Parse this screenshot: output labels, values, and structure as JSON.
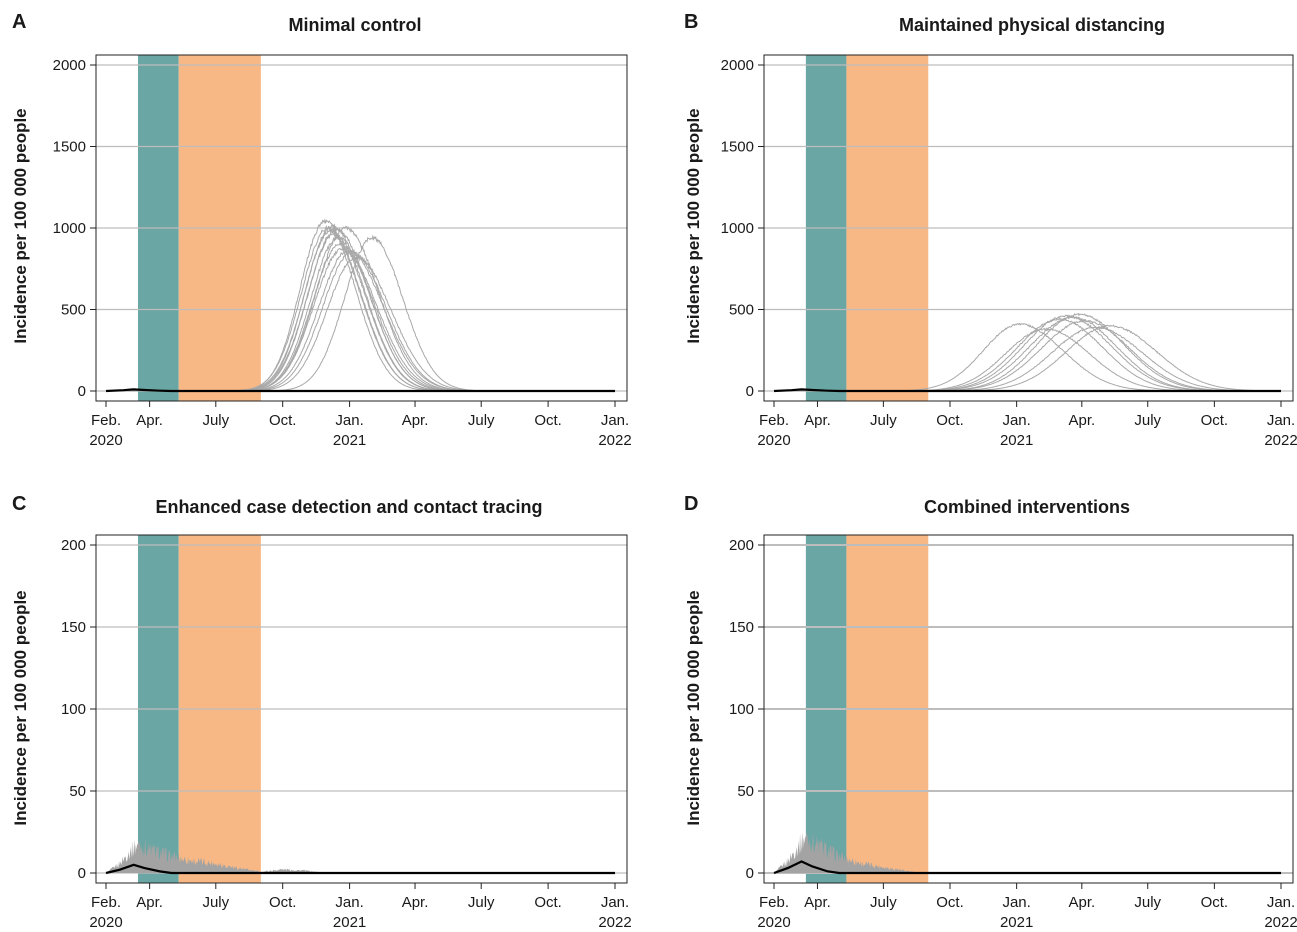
{
  "figure": {
    "x_axis_start": "2020-02-01"
  },
  "chart_data": [
    {
      "panel": "A",
      "title": "Minimal control",
      "type": "line",
      "ylabel": "Incidence per 100 000 people",
      "xlim": [
        "2020-02-01",
        "2022-01-01"
      ],
      "ylim": [
        0,
        2000
      ],
      "yticks": [
        0,
        500,
        1000,
        1500,
        2000
      ],
      "grid": true,
      "xticks": [
        {
          "date": "2020-02-01",
          "label": "Feb.",
          "year": "2020"
        },
        {
          "date": "2020-04-01",
          "label": "Apr.",
          "year": ""
        },
        {
          "date": "2020-07-01",
          "label": "July",
          "year": ""
        },
        {
          "date": "2020-10-01",
          "label": "Oct.",
          "year": ""
        },
        {
          "date": "2021-01-01",
          "label": "Jan.",
          "year": "2021"
        },
        {
          "date": "2021-04-01",
          "label": "Apr.",
          "year": ""
        },
        {
          "date": "2021-07-01",
          "label": "July",
          "year": ""
        },
        {
          "date": "2021-10-01",
          "label": "Oct.",
          "year": ""
        },
        {
          "date": "2022-01-01",
          "label": "Jan.",
          "year": "2022"
        }
      ],
      "shaded_periods": [
        {
          "start": "2020-03-16",
          "end": "2020-05-11",
          "color": "#6aa6a4"
        },
        {
          "start": "2020-05-11",
          "end": "2020-09-01",
          "color": "#f8b885"
        }
      ],
      "epidemic_curves": [
        {
          "peak_date": "2020-11-28",
          "peak": 1040,
          "rise_width": 34,
          "fall_width": 42
        },
        {
          "peak_date": "2020-12-02",
          "peak": 1000,
          "rise_width": 36,
          "fall_width": 44
        },
        {
          "peak_date": "2020-12-05",
          "peak": 980,
          "rise_width": 35,
          "fall_width": 43
        },
        {
          "peak_date": "2020-12-08",
          "peak": 1010,
          "rise_width": 37,
          "fall_width": 45
        },
        {
          "peak_date": "2020-12-10",
          "peak": 960,
          "rise_width": 36,
          "fall_width": 44
        },
        {
          "peak_date": "2020-12-13",
          "peak": 990,
          "rise_width": 38,
          "fall_width": 46
        },
        {
          "peak_date": "2020-12-16",
          "peak": 940,
          "rise_width": 37,
          "fall_width": 45
        },
        {
          "peak_date": "2020-12-19",
          "peak": 900,
          "rise_width": 38,
          "fall_width": 46
        },
        {
          "peak_date": "2020-12-22",
          "peak": 870,
          "rise_width": 39,
          "fall_width": 47
        },
        {
          "peak_date": "2020-12-26",
          "peak": 1000,
          "rise_width": 40,
          "fall_width": 46
        },
        {
          "peak_date": "2020-12-30",
          "peak": 860,
          "rise_width": 40,
          "fall_width": 48
        },
        {
          "peak_date": "2021-01-04",
          "peak": 850,
          "rise_width": 40,
          "fall_width": 47
        },
        {
          "peak_date": "2021-01-10",
          "peak": 820,
          "rise_width": 40,
          "fall_width": 48
        },
        {
          "peak_date": "2021-02-01",
          "peak": 940,
          "rise_width": 38,
          "fall_width": 42
        }
      ],
      "noise_band": null,
      "median_line": [
        {
          "date": "2020-02-01",
          "value": 0
        },
        {
          "date": "2020-02-25",
          "value": 5
        },
        {
          "date": "2020-03-10",
          "value": 10
        },
        {
          "date": "2020-03-25",
          "value": 6
        },
        {
          "date": "2020-04-15",
          "value": 2
        },
        {
          "date": "2020-05-01",
          "value": 0
        },
        {
          "date": "2022-01-01",
          "value": 0
        }
      ]
    },
    {
      "panel": "B",
      "title": "Maintained physical distancing",
      "type": "line",
      "ylabel": "Incidence per 100 000 people",
      "xlim": [
        "2020-02-01",
        "2022-01-01"
      ],
      "ylim": [
        0,
        2000
      ],
      "yticks": [
        0,
        500,
        1000,
        1500,
        2000
      ],
      "grid": true,
      "xticks": [
        {
          "date": "2020-02-01",
          "label": "Feb.",
          "year": "2020"
        },
        {
          "date": "2020-04-01",
          "label": "Apr.",
          "year": ""
        },
        {
          "date": "2020-07-01",
          "label": "July",
          "year": ""
        },
        {
          "date": "2020-10-01",
          "label": "Oct.",
          "year": ""
        },
        {
          "date": "2021-01-01",
          "label": "Jan.",
          "year": "2021"
        },
        {
          "date": "2021-04-01",
          "label": "Apr.",
          "year": ""
        },
        {
          "date": "2021-07-01",
          "label": "July",
          "year": ""
        },
        {
          "date": "2021-10-01",
          "label": "Oct.",
          "year": ""
        },
        {
          "date": "2022-01-01",
          "label": "Jan.",
          "year": "2022"
        }
      ],
      "shaded_periods": [
        {
          "start": "2020-03-16",
          "end": "2020-05-11",
          "color": "#6aa6a4"
        },
        {
          "start": "2020-05-11",
          "end": "2020-09-01",
          "color": "#f8b885"
        }
      ],
      "epidemic_curves": [
        {
          "peak_date": "2021-01-05",
          "peak": 410,
          "rise_width": 50,
          "fall_width": 60
        },
        {
          "peak_date": "2021-02-10",
          "peak": 380,
          "rise_width": 55,
          "fall_width": 60
        },
        {
          "peak_date": "2021-03-01",
          "peak": 440,
          "rise_width": 58,
          "fall_width": 60
        },
        {
          "peak_date": "2021-03-10",
          "peak": 460,
          "rise_width": 58,
          "fall_width": 62
        },
        {
          "peak_date": "2021-03-20",
          "peak": 450,
          "rise_width": 60,
          "fall_width": 60
        },
        {
          "peak_date": "2021-03-28",
          "peak": 470,
          "rise_width": 58,
          "fall_width": 62
        },
        {
          "peak_date": "2021-04-05",
          "peak": 430,
          "rise_width": 60,
          "fall_width": 62
        },
        {
          "peak_date": "2021-04-20",
          "peak": 390,
          "rise_width": 60,
          "fall_width": 64
        },
        {
          "peak_date": "2021-05-10",
          "peak": 400,
          "rise_width": 60,
          "fall_width": 64
        }
      ],
      "noise_band": null,
      "median_line": [
        {
          "date": "2020-02-01",
          "value": 0
        },
        {
          "date": "2020-02-25",
          "value": 5
        },
        {
          "date": "2020-03-10",
          "value": 10
        },
        {
          "date": "2020-03-25",
          "value": 6
        },
        {
          "date": "2020-04-15",
          "value": 2
        },
        {
          "date": "2020-05-01",
          "value": 0
        },
        {
          "date": "2022-01-01",
          "value": 0
        }
      ]
    },
    {
      "panel": "C",
      "title": "Enhanced case detection and contact tracing",
      "type": "line",
      "ylabel": "Incidence per 100 000 people",
      "xlim": [
        "2020-02-01",
        "2022-01-01"
      ],
      "ylim": [
        0,
        200
      ],
      "yticks": [
        0,
        50,
        100,
        150,
        200
      ],
      "grid": true,
      "xticks": [
        {
          "date": "2020-02-01",
          "label": "Feb.",
          "year": "2020"
        },
        {
          "date": "2020-04-01",
          "label": "Apr.",
          "year": ""
        },
        {
          "date": "2020-07-01",
          "label": "July",
          "year": ""
        },
        {
          "date": "2020-10-01",
          "label": "Oct.",
          "year": ""
        },
        {
          "date": "2021-01-01",
          "label": "Jan.",
          "year": "2021"
        },
        {
          "date": "2021-04-01",
          "label": "Apr.",
          "year": ""
        },
        {
          "date": "2021-07-01",
          "label": "July",
          "year": ""
        },
        {
          "date": "2021-10-01",
          "label": "Oct.",
          "year": ""
        },
        {
          "date": "2022-01-01",
          "label": "Jan.",
          "year": "2022"
        }
      ],
      "shaded_periods": [
        {
          "start": "2020-03-16",
          "end": "2020-05-11",
          "color": "#6aa6a4"
        },
        {
          "start": "2020-05-11",
          "end": "2020-09-01",
          "color": "#f8b885"
        }
      ],
      "epidemic_curves": [],
      "noise_band": {
        "color": "#a3a3a3",
        "upper": [
          {
            "date": "2020-02-01",
            "value": 0
          },
          {
            "date": "2020-02-20",
            "value": 8
          },
          {
            "date": "2020-03-05",
            "value": 18
          },
          {
            "date": "2020-03-15",
            "value": 24
          },
          {
            "date": "2020-04-01",
            "value": 20
          },
          {
            "date": "2020-05-01",
            "value": 14
          },
          {
            "date": "2020-06-01",
            "value": 10
          },
          {
            "date": "2020-07-01",
            "value": 8
          },
          {
            "date": "2020-08-01",
            "value": 4
          },
          {
            "date": "2020-09-01",
            "value": 1
          },
          {
            "date": "2020-10-01",
            "value": 3
          },
          {
            "date": "2020-11-01",
            "value": 2
          },
          {
            "date": "2020-12-01",
            "value": 0
          }
        ]
      },
      "median_line": [
        {
          "date": "2020-02-01",
          "value": 0
        },
        {
          "date": "2020-02-20",
          "value": 2
        },
        {
          "date": "2020-03-10",
          "value": 5
        },
        {
          "date": "2020-03-25",
          "value": 3
        },
        {
          "date": "2020-04-15",
          "value": 1
        },
        {
          "date": "2020-05-01",
          "value": 0
        },
        {
          "date": "2022-01-01",
          "value": 0
        }
      ]
    },
    {
      "panel": "D",
      "title": "Combined interventions",
      "type": "line",
      "ylabel": "Incidence per 100 000 people",
      "xlim": [
        "2020-02-01",
        "2022-01-01"
      ],
      "ylim": [
        0,
        200
      ],
      "yticks": [
        0,
        50,
        100,
        150,
        200
      ],
      "grid": true,
      "xticks": [
        {
          "date": "2020-02-01",
          "label": "Feb.",
          "year": "2020"
        },
        {
          "date": "2020-04-01",
          "label": "Apr.",
          "year": ""
        },
        {
          "date": "2020-07-01",
          "label": "July",
          "year": ""
        },
        {
          "date": "2020-10-01",
          "label": "Oct.",
          "year": ""
        },
        {
          "date": "2021-01-01",
          "label": "Jan.",
          "year": "2021"
        },
        {
          "date": "2021-04-01",
          "label": "Apr.",
          "year": ""
        },
        {
          "date": "2021-07-01",
          "label": "July",
          "year": ""
        },
        {
          "date": "2021-10-01",
          "label": "Oct.",
          "year": ""
        },
        {
          "date": "2022-01-01",
          "label": "Jan.",
          "year": "2022"
        }
      ],
      "shaded_periods": [
        {
          "start": "2020-03-16",
          "end": "2020-05-11",
          "color": "#6aa6a4"
        },
        {
          "start": "2020-05-11",
          "end": "2020-09-01",
          "color": "#f8b885"
        }
      ],
      "epidemic_curves": [],
      "noise_band": {
        "color": "#a3a3a3",
        "upper": [
          {
            "date": "2020-02-01",
            "value": 0
          },
          {
            "date": "2020-02-20",
            "value": 10
          },
          {
            "date": "2020-03-05",
            "value": 22
          },
          {
            "date": "2020-03-15",
            "value": 30
          },
          {
            "date": "2020-04-01",
            "value": 24
          },
          {
            "date": "2020-05-01",
            "value": 14
          },
          {
            "date": "2020-06-01",
            "value": 8
          },
          {
            "date": "2020-07-01",
            "value": 5
          },
          {
            "date": "2020-08-01",
            "value": 2
          },
          {
            "date": "2020-08-20",
            "value": 0
          }
        ]
      },
      "median_line": [
        {
          "date": "2020-02-01",
          "value": 0
        },
        {
          "date": "2020-02-20",
          "value": 3
        },
        {
          "date": "2020-03-10",
          "value": 7
        },
        {
          "date": "2020-03-25",
          "value": 4
        },
        {
          "date": "2020-04-15",
          "value": 1
        },
        {
          "date": "2020-05-01",
          "value": 0
        },
        {
          "date": "2022-01-01",
          "value": 0
        }
      ]
    }
  ]
}
